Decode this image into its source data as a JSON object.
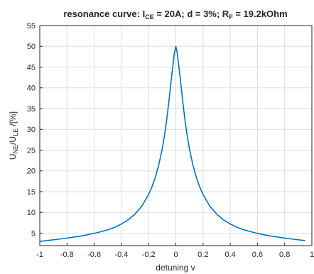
{
  "chart_data": {
    "type": "line",
    "title_parts": {
      "t1": "resonance curve: I",
      "s1": "CE",
      "t2": " = 20A; d = 3%; R",
      "s2": "F",
      "t3": " = 19.2kOhm"
    },
    "xlabel": "detuning v",
    "ylabel_parts": {
      "a": "U",
      "a_sub": "NE",
      "b": "/U",
      "b_sub": "LE",
      "c": " /[%]"
    },
    "xlim": [
      -1,
      1
    ],
    "ylim": [
      2,
      55
    ],
    "xticks": [
      "-1",
      "-0.8",
      "-0.6",
      "-0.4",
      "-0.2",
      "0",
      "0.2",
      "0.4",
      "0.6",
      "0.8",
      "1"
    ],
    "yticks": [
      "5",
      "10",
      "15",
      "20",
      "25",
      "30",
      "35",
      "40",
      "45",
      "50",
      "55"
    ],
    "grid": true,
    "line_color": "#0072BD",
    "series": [
      {
        "x": [
          -1,
          -0.95,
          -0.9,
          -0.85,
          -0.8,
          -0.75,
          -0.7,
          -0.65,
          -0.6,
          -0.55,
          -0.5,
          -0.45,
          -0.4,
          -0.35,
          -0.3,
          -0.25,
          -0.2,
          -0.175,
          -0.15,
          -0.125,
          -0.1,
          -0.09,
          -0.08,
          -0.07,
          -0.06,
          -0.05,
          -0.04,
          -0.03,
          -0.02,
          -0.01,
          0,
          0.01,
          0.02,
          0.03,
          0.04,
          0.05,
          0.06,
          0.07,
          0.08,
          0.09,
          0.1,
          0.125,
          0.15,
          0.175,
          0.2,
          0.25,
          0.3,
          0.35,
          0.4,
          0.45,
          0.5,
          0.55,
          0.6,
          0.65,
          0.7,
          0.75,
          0.8,
          0.85,
          0.9,
          0.95
        ],
        "y": [
          3.0,
          3.2,
          3.4,
          3.6,
          3.8,
          4.05,
          4.3,
          4.6,
          4.95,
          5.35,
          5.8,
          6.4,
          7.2,
          8.2,
          9.6,
          11.5,
          14.3,
          16.2,
          18.5,
          21.5,
          25.3,
          27.2,
          29.3,
          31.6,
          34.2,
          37.0,
          40.0,
          43.0,
          45.8,
          48.5,
          50.0,
          48.5,
          45.8,
          43.0,
          40.0,
          37.0,
          34.2,
          31.6,
          29.3,
          27.2,
          25.3,
          21.5,
          18.5,
          16.2,
          14.3,
          11.5,
          9.6,
          8.2,
          7.2,
          6.4,
          5.8,
          5.35,
          4.95,
          4.6,
          4.3,
          4.05,
          3.8,
          3.6,
          3.4,
          3.2
        ]
      }
    ]
  }
}
